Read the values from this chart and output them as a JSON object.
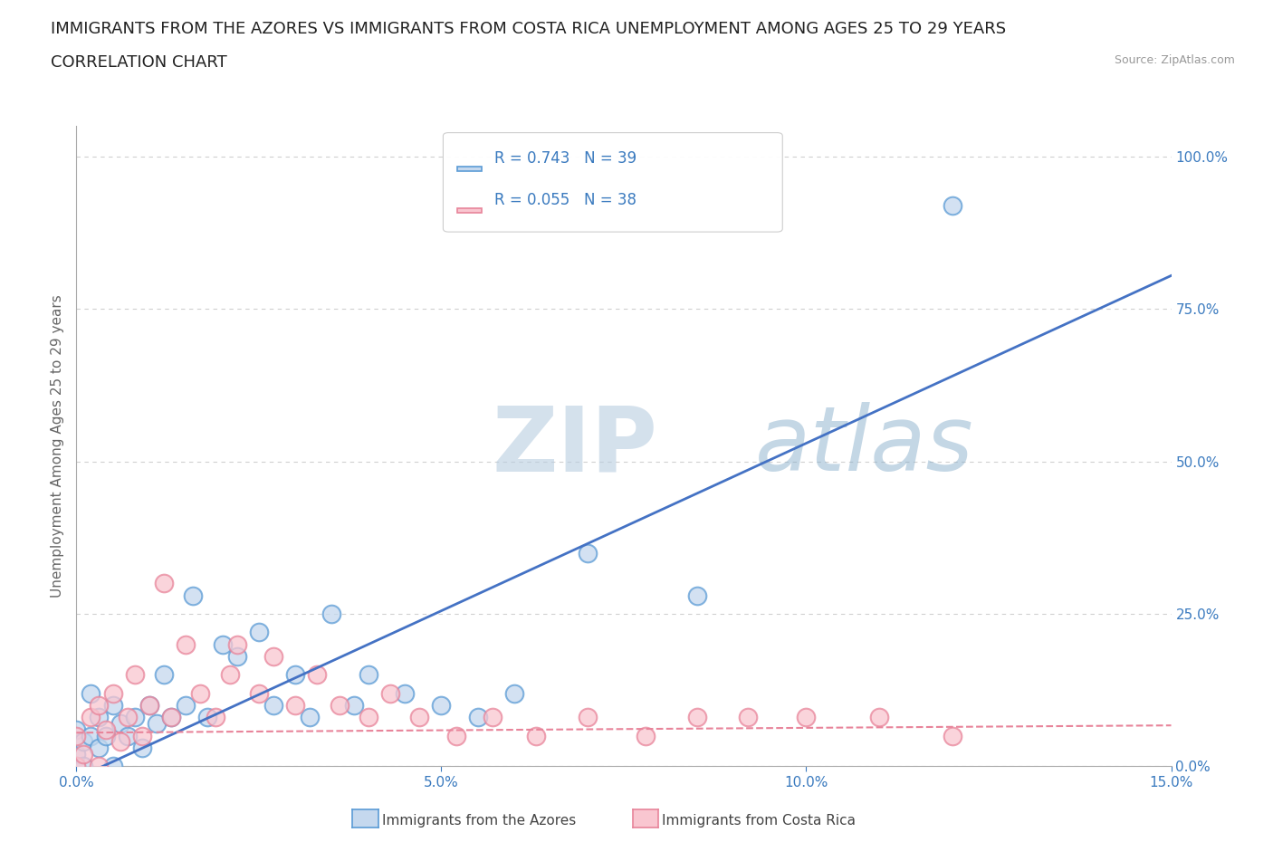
{
  "title_line1": "IMMIGRANTS FROM THE AZORES VS IMMIGRANTS FROM COSTA RICA UNEMPLOYMENT AMONG AGES 25 TO 29 YEARS",
  "title_line2": "CORRELATION CHART",
  "source_text": "Source: ZipAtlas.com",
  "ylabel": "Unemployment Among Ages 25 to 29 years",
  "xmin": 0.0,
  "xmax": 0.15,
  "ymin": 0.0,
  "ymax": 1.05,
  "yticks": [
    0.0,
    0.25,
    0.5,
    0.75,
    1.0
  ],
  "ytick_labels": [
    "0.0%",
    "25.0%",
    "50.0%",
    "75.0%",
    "100.0%"
  ],
  "xticks": [
    0.0,
    0.05,
    0.1,
    0.15
  ],
  "xtick_labels": [
    "0.0%",
    "5.0%",
    "10.0%",
    "15.0%"
  ],
  "azores_fill_color": "#c5d8ee",
  "azores_edge_color": "#5b9bd5",
  "costa_rica_fill_color": "#f9c6d0",
  "costa_rica_edge_color": "#e8849a",
  "azores_line_color": "#4472c4",
  "costa_rica_line_color": "#e8849a",
  "R_azores": 0.743,
  "N_azores": 39,
  "R_costa_rica": 0.055,
  "N_costa_rica": 38,
  "legend_text_color": "#3a7abf",
  "watermark_zip": "ZIP",
  "watermark_atlas": "atlas",
  "bg_color": "#ffffff",
  "grid_color": "#d0d0d0",
  "title_fontsize": 13,
  "axis_label_fontsize": 11,
  "tick_fontsize": 11,
  "azores_x": [
    0.0,
    0.0,
    0.0,
    0.001,
    0.001,
    0.002,
    0.002,
    0.003,
    0.003,
    0.004,
    0.005,
    0.005,
    0.006,
    0.007,
    0.008,
    0.009,
    0.01,
    0.011,
    0.012,
    0.013,
    0.015,
    0.016,
    0.018,
    0.02,
    0.022,
    0.025,
    0.027,
    0.03,
    0.032,
    0.035,
    0.038,
    0.04,
    0.045,
    0.05,
    0.055,
    0.06,
    0.07,
    0.085,
    0.12
  ],
  "azores_y": [
    0.0,
    0.02,
    0.06,
    0.0,
    0.04,
    0.05,
    0.12,
    0.03,
    0.08,
    0.05,
    0.0,
    0.1,
    0.07,
    0.05,
    0.08,
    0.03,
    0.1,
    0.07,
    0.15,
    0.08,
    0.1,
    0.28,
    0.08,
    0.2,
    0.18,
    0.22,
    0.1,
    0.15,
    0.08,
    0.25,
    0.1,
    0.15,
    0.12,
    0.1,
    0.08,
    0.12,
    0.35,
    0.28,
    0.92
  ],
  "costa_rica_x": [
    0.0,
    0.0,
    0.001,
    0.002,
    0.003,
    0.003,
    0.004,
    0.005,
    0.006,
    0.007,
    0.008,
    0.009,
    0.01,
    0.012,
    0.013,
    0.015,
    0.017,
    0.019,
    0.021,
    0.022,
    0.025,
    0.027,
    0.03,
    0.033,
    0.036,
    0.04,
    0.043,
    0.047,
    0.052,
    0.057,
    0.063,
    0.07,
    0.078,
    0.085,
    0.092,
    0.1,
    0.11,
    0.12
  ],
  "costa_rica_y": [
    0.0,
    0.05,
    0.02,
    0.08,
    0.0,
    0.1,
    0.06,
    0.12,
    0.04,
    0.08,
    0.15,
    0.05,
    0.1,
    0.3,
    0.08,
    0.2,
    0.12,
    0.08,
    0.15,
    0.2,
    0.12,
    0.18,
    0.1,
    0.15,
    0.1,
    0.08,
    0.12,
    0.08,
    0.05,
    0.08,
    0.05,
    0.08,
    0.05,
    0.08,
    0.08,
    0.08,
    0.08,
    0.05
  ]
}
